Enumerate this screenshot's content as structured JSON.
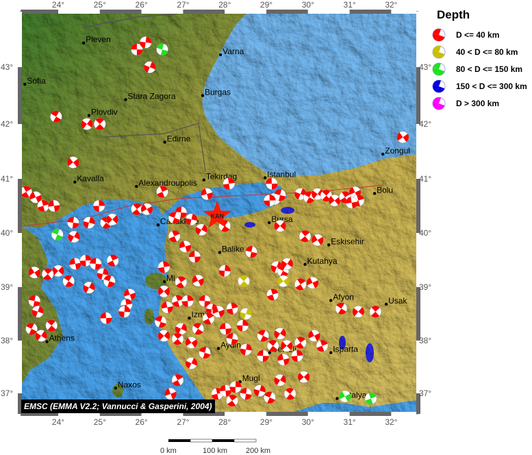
{
  "map": {
    "lon_ticks": [
      "24°",
      "25°",
      "26°",
      "27°",
      "28°",
      "29°",
      "30°",
      "31°",
      "32°"
    ],
    "lat_ticks": [
      "43°",
      "42°",
      "41°",
      "40°",
      "39°",
      "38°",
      "37°"
    ],
    "lon_range": [
      23.1,
      32.6
    ],
    "lat_range": [
      36.6,
      43.95
    ],
    "colors": {
      "sea": "#4aa3ec",
      "black_sea": "#74b8f0",
      "lowland": "#3f7d2c",
      "highland": "#c9b24e",
      "mechanism": "#ff1a00"
    },
    "epicenter": {
      "label": "KAN",
      "lon": 27.82,
      "lat": 40.32,
      "color": "#ff1a00"
    },
    "cities": [
      {
        "name": "Pleven",
        "lon": 24.61,
        "lat": 43.41
      },
      {
        "name": "Varna",
        "lon": 27.9,
        "lat": 43.21
      },
      {
        "name": "Sofia",
        "lon": 23.2,
        "lat": 42.7
      },
      {
        "name": "Stara Zagora",
        "lon": 25.62,
        "lat": 42.43
      },
      {
        "name": "Burgas",
        "lon": 27.47,
        "lat": 42.5
      },
      {
        "name": "Plovdiv",
        "lon": 24.74,
        "lat": 42.15
      },
      {
        "name": "Edirne",
        "lon": 26.56,
        "lat": 41.67
      },
      {
        "name": "Zongul",
        "lon": 31.8,
        "lat": 41.45
      },
      {
        "name": "Kavalla",
        "lon": 24.4,
        "lat": 40.94
      },
      {
        "name": "Alexandroupolis",
        "lon": 25.88,
        "lat": 40.86
      },
      {
        "name": "Tekirdag",
        "lon": 27.5,
        "lat": 40.98
      },
      {
        "name": "Istanbul",
        "lon": 28.97,
        "lat": 41.02
      },
      {
        "name": "Bolu",
        "lon": 31.6,
        "lat": 40.73
      },
      {
        "name": "Canakkale",
        "lon": 26.4,
        "lat": 40.15
      },
      {
        "name": "Bursa",
        "lon": 29.07,
        "lat": 40.19
      },
      {
        "name": "Eskisehir",
        "lon": 30.5,
        "lat": 39.78
      },
      {
        "name": "Balike",
        "lon": 27.88,
        "lat": 39.64
      },
      {
        "name": "Kutahya",
        "lon": 29.93,
        "lat": 39.42
      },
      {
        "name": "Mi",
        "lon": 26.55,
        "lat": 39.1
      },
      {
        "name": "Izmir",
        "lon": 27.15,
        "lat": 38.42
      },
      {
        "name": "Afyon",
        "lon": 30.55,
        "lat": 38.75
      },
      {
        "name": "Usak",
        "lon": 31.88,
        "lat": 38.68
      },
      {
        "name": "Athens",
        "lon": 23.73,
        "lat": 37.98
      },
      {
        "name": "Aydin",
        "lon": 27.85,
        "lat": 37.85
      },
      {
        "name": "Denizli",
        "lon": 29.08,
        "lat": 37.77
      },
      {
        "name": "Isparta",
        "lon": 30.55,
        "lat": 37.77
      },
      {
        "name": "Naxos",
        "lon": 25.38,
        "lat": 37.1
      },
      {
        "name": "Mugl",
        "lon": 28.37,
        "lat": 37.22
      },
      {
        "name": "Antalya",
        "lon": 30.7,
        "lat": 36.9
      }
    ],
    "mechanisms": [
      [
        25.89,
        43.3,
        "d40"
      ],
      [
        26.1,
        43.42,
        "d40"
      ],
      [
        26.5,
        43.3,
        "d150"
      ],
      [
        26.2,
        43.0,
        "d40"
      ],
      [
        23.95,
        42.13,
        "d40"
      ],
      [
        24.69,
        42.0,
        "d40"
      ],
      [
        25.0,
        42.0,
        "d40"
      ],
      [
        24.36,
        41.3,
        "d40"
      ],
      [
        23.23,
        40.76,
        "d40"
      ],
      [
        23.46,
        40.66,
        "d40"
      ],
      [
        23.64,
        40.5,
        "d40"
      ],
      [
        23.9,
        40.5,
        "d40"
      ],
      [
        24.98,
        40.5,
        "d40"
      ],
      [
        24.36,
        40.19,
        "d40"
      ],
      [
        24.74,
        40.19,
        "d40"
      ],
      [
        23.98,
        39.97,
        "d150"
      ],
      [
        24.38,
        39.93,
        "d40"
      ],
      [
        25.15,
        40.19,
        "d40"
      ],
      [
        25.3,
        40.25,
        "d40"
      ],
      [
        25.89,
        40.44,
        "d40"
      ],
      [
        26.13,
        40.44,
        "d40"
      ],
      [
        26.5,
        40.76,
        "d40"
      ],
      [
        27.57,
        40.72,
        "d40"
      ],
      [
        28.1,
        40.91,
        "d40"
      ],
      [
        29.13,
        40.91,
        "d40"
      ],
      [
        29.2,
        40.63,
        "d40"
      ],
      [
        29.33,
        40.7,
        "d40"
      ],
      [
        29.82,
        40.72,
        "d40"
      ],
      [
        30.03,
        40.66,
        "d40"
      ],
      [
        30.23,
        40.72,
        "d40"
      ],
      [
        30.44,
        40.69,
        "d40"
      ],
      [
        30.64,
        40.6,
        "d40"
      ],
      [
        30.89,
        40.66,
        "d40"
      ],
      [
        31.13,
        40.75,
        "d40"
      ],
      [
        31.21,
        40.6,
        "d40"
      ],
      [
        31.05,
        40.56,
        "d40"
      ],
      [
        29.08,
        40.6,
        "d40"
      ],
      [
        26.95,
        40.38,
        "d40"
      ],
      [
        27.2,
        40.25,
        "d40"
      ],
      [
        26.79,
        40.28,
        "d40"
      ],
      [
        27.44,
        40.06,
        "d40"
      ],
      [
        28.0,
        40.13,
        "d40"
      ],
      [
        29.33,
        40.13,
        "d40"
      ],
      [
        29.93,
        39.94,
        "d40"
      ],
      [
        30.23,
        39.87,
        "d40"
      ],
      [
        26.79,
        39.94,
        "d40"
      ],
      [
        27.05,
        39.75,
        "d40"
      ],
      [
        26.54,
        39.37,
        "d40"
      ],
      [
        27.28,
        39.56,
        "d40"
      ],
      [
        28.0,
        39.3,
        "d40"
      ],
      [
        28.64,
        39.65,
        "d40"
      ],
      [
        29.25,
        39.37,
        "d40"
      ],
      [
        29.4,
        39.3,
        "d40"
      ],
      [
        29.5,
        39.43,
        "d40"
      ],
      [
        28.46,
        39.11,
        "d80"
      ],
      [
        29.41,
        39.11,
        "d80"
      ],
      [
        29.82,
        39.05,
        "d40"
      ],
      [
        30.11,
        39.08,
        "d40"
      ],
      [
        29.15,
        38.86,
        "d40"
      ],
      [
        24.41,
        39.43,
        "d40"
      ],
      [
        24.66,
        39.49,
        "d40"
      ],
      [
        24.9,
        39.43,
        "d40"
      ],
      [
        25.07,
        39.24,
        "d40"
      ],
      [
        25.23,
        39.11,
        "d40"
      ],
      [
        24.74,
        38.99,
        "d40"
      ],
      [
        24.25,
        39.11,
        "d40"
      ],
      [
        24.0,
        39.3,
        "d40"
      ],
      [
        23.75,
        39.24,
        "d40"
      ],
      [
        23.43,
        39.27,
        "d40"
      ],
      [
        25.31,
        39.49,
        "d40"
      ],
      [
        25.72,
        38.86,
        "d40"
      ],
      [
        25.64,
        38.67,
        "d40"
      ],
      [
        25.15,
        38.42,
        "d40"
      ],
      [
        25.59,
        38.54,
        "d40"
      ],
      [
        23.43,
        38.74,
        "d40"
      ],
      [
        23.51,
        38.54,
        "d40"
      ],
      [
        23.36,
        38.22,
        "d40"
      ],
      [
        23.59,
        38.09,
        "d40"
      ],
      [
        23.84,
        38.28,
        "d40"
      ],
      [
        26.54,
        38.92,
        "d40"
      ],
      [
        26.95,
        39.09,
        "d40"
      ],
      [
        27.36,
        39.12,
        "d40"
      ],
      [
        26.87,
        38.74,
        "d40"
      ],
      [
        26.62,
        38.62,
        "d40"
      ],
      [
        27.11,
        38.74,
        "d40"
      ],
      [
        27.52,
        38.74,
        "d40"
      ],
      [
        27.69,
        38.58,
        "d40"
      ],
      [
        26.46,
        38.35,
        "d40"
      ],
      [
        26.95,
        38.22,
        "d40"
      ],
      [
        27.36,
        38.22,
        "d40"
      ],
      [
        26.54,
        38.09,
        "d40"
      ],
      [
        26.87,
        38.03,
        "d40"
      ],
      [
        27.2,
        37.96,
        "d40"
      ],
      [
        27.61,
        38.41,
        "d40"
      ],
      [
        27.85,
        38.54,
        "d40"
      ],
      [
        28.18,
        38.6,
        "d40"
      ],
      [
        28.02,
        38.22,
        "d40"
      ],
      [
        28.43,
        38.28,
        "d40"
      ],
      [
        28.18,
        38.03,
        "d40"
      ],
      [
        28.51,
        38.5,
        "d80"
      ],
      [
        28.92,
        38.09,
        "d40"
      ],
      [
        29.33,
        38.13,
        "d40"
      ],
      [
        29.16,
        37.9,
        "d40"
      ],
      [
        29.49,
        37.9,
        "d40"
      ],
      [
        29.82,
        37.96,
        "d40"
      ],
      [
        30.15,
        38.09,
        "d40"
      ],
      [
        30.34,
        37.9,
        "d40"
      ],
      [
        29.41,
        37.64,
        "d40"
      ],
      [
        29.74,
        37.71,
        "d40"
      ],
      [
        28.92,
        37.71,
        "d40"
      ],
      [
        28.51,
        37.83,
        "d40"
      ],
      [
        27.52,
        37.77,
        "d40"
      ],
      [
        27.2,
        37.57,
        "d40"
      ],
      [
        30.8,
        38.6,
        "d40"
      ],
      [
        31.21,
        38.54,
        "d40"
      ],
      [
        31.62,
        38.54,
        "d40"
      ],
      [
        32.28,
        41.76,
        "d40"
      ],
      [
        26.87,
        37.25,
        "d40"
      ],
      [
        26.7,
        36.99,
        "d40"
      ],
      [
        27.82,
        36.99,
        "d40"
      ],
      [
        28.02,
        37.05,
        "d40"
      ],
      [
        28.26,
        37.12,
        "d40"
      ],
      [
        28.51,
        36.99,
        "d40"
      ],
      [
        28.84,
        37.05,
        "d40"
      ],
      [
        29.08,
        36.92,
        "d40"
      ],
      [
        29.33,
        37.25,
        "d40"
      ],
      [
        29.57,
        36.99,
        "d40"
      ],
      [
        29.9,
        37.31,
        "d40"
      ],
      [
        28.18,
        36.86,
        "d40"
      ],
      [
        30.89,
        36.94,
        "d150"
      ],
      [
        31.51,
        36.9,
        "d150"
      ]
    ]
  },
  "legend": {
    "title": "Depth",
    "items": [
      {
        "key": "d40",
        "label": "D <= 40 km",
        "color": "#ff0000"
      },
      {
        "key": "d80",
        "label": "40 < D <= 80 km",
        "color": "#c8c000"
      },
      {
        "key": "d150",
        "label": "80 < D <= 150 km",
        "color": "#22e022"
      },
      {
        "key": "d300",
        "label": "150 < D <= 300 km",
        "color": "#0000e0"
      },
      {
        "key": "d300p",
        "label": "D > 300 km",
        "color": "#ff00ff"
      }
    ]
  },
  "credit": "EMSC (EMMA V2.2; Vannucci & Gasperini, 2004)",
  "scale_bar": {
    "labels": [
      "0 km",
      "100 km",
      "200 km"
    ]
  }
}
